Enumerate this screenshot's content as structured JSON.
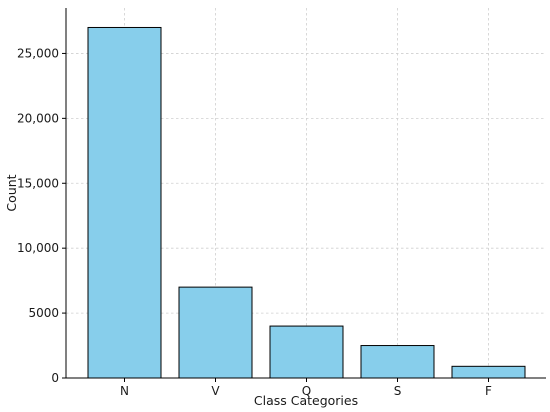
{
  "chart_data": {
    "type": "bar",
    "categories": [
      "N",
      "V",
      "Q",
      "S",
      "F"
    ],
    "values": [
      27000,
      7000,
      4000,
      2500,
      900
    ],
    "xlabel": "Class Categories",
    "ylabel": "Count",
    "ylim": [
      0,
      28500
    ],
    "yticks": [
      0,
      5000,
      10000,
      15000,
      20000,
      25000
    ],
    "ytick_labels": [
      "0",
      "5000",
      "10,000",
      "15,000",
      "20,000",
      "25,000"
    ],
    "grid": true,
    "bar_color": "#87CEEB",
    "bar_edge_color": "#000000"
  }
}
